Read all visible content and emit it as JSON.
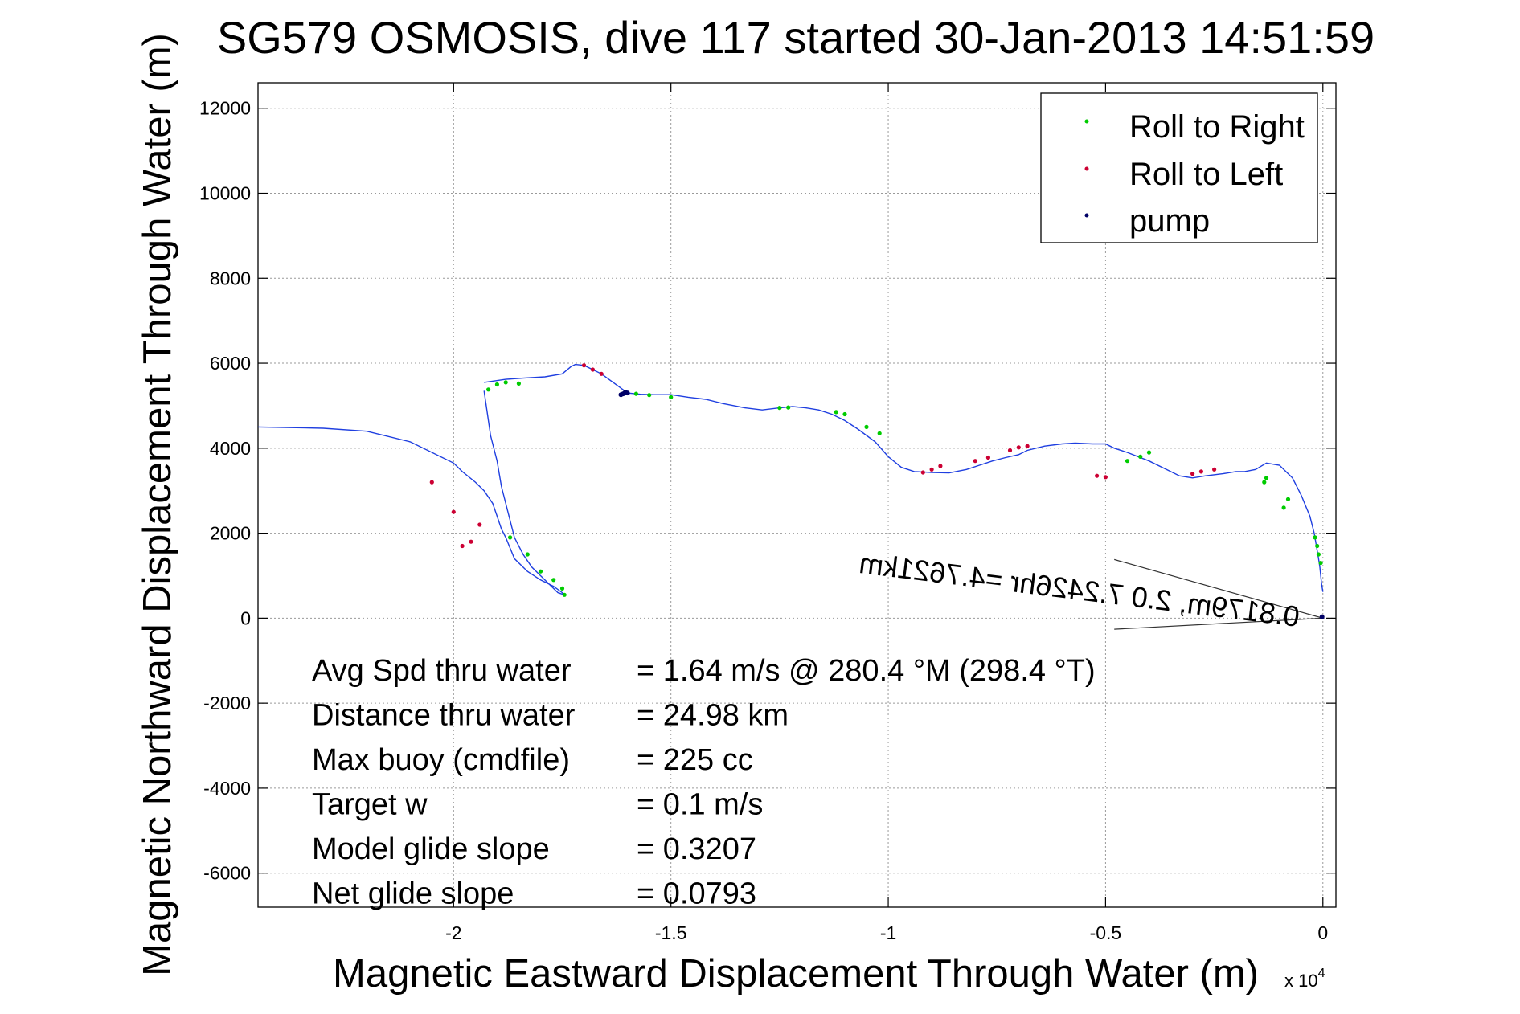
{
  "chart_data": {
    "type": "line",
    "title": "SG579 OSMOSIS, dive 117 started 30-Jan-2013 14:51:59",
    "xlabel": "Magnetic Eastward Displacement Through Water (m)",
    "ylabel": "Magnetic Northward Displacement Through Water (m)",
    "x_exponent_label": "x 10",
    "x_exponent_power": "4",
    "xlim": [
      -2.45,
      0.03
    ],
    "ylim": [
      -6800,
      12600
    ],
    "x_ticks": [
      -2,
      -1.5,
      -1,
      -0.5,
      0
    ],
    "x_tick_labels": [
      "-2",
      "-1.5",
      "-1",
      "-0.5",
      "0"
    ],
    "y_ticks": [
      -6000,
      -4000,
      -2000,
      0,
      2000,
      4000,
      6000,
      8000,
      10000,
      12000
    ],
    "y_tick_labels": [
      "-6000",
      "-4000",
      "-2000",
      "0",
      "2000",
      "4000",
      "6000",
      "8000",
      "10000",
      "12000"
    ],
    "grid": true,
    "legend_position": "top-right",
    "colors": {
      "track": "#1f3fe0",
      "roll_right": "#00cc00",
      "roll_left": "#cc0033",
      "pump": "#000066",
      "current": "#333333"
    },
    "series": [
      {
        "name": "",
        "style": "line",
        "x": [
          0.0,
          -0.003,
          -0.007,
          -0.01,
          -0.015,
          -0.02,
          -0.03,
          -0.05,
          -0.07,
          -0.1,
          -0.13,
          -0.155,
          -0.18,
          -0.2,
          -0.23,
          -0.27,
          -0.3,
          -0.33,
          -0.36,
          -0.4,
          -0.45,
          -0.48,
          -0.5,
          -0.53,
          -0.57,
          -0.6,
          -0.64,
          -0.68,
          -0.7,
          -0.73,
          -0.76,
          -0.79,
          -0.82,
          -0.86,
          -0.9,
          -0.94,
          -0.97,
          -1.0,
          -1.03,
          -1.07,
          -1.1,
          -1.13,
          -1.16,
          -1.19,
          -1.22,
          -1.25,
          -1.29,
          -1.33,
          -1.38,
          -1.42,
          -1.46,
          -1.5,
          -1.54,
          -1.57,
          -1.6,
          -1.62,
          -1.64,
          -1.66,
          -1.68,
          -1.7,
          -1.72,
          -1.73,
          -1.75,
          -1.79,
          -1.84,
          -1.88,
          -1.93
        ],
        "y": [
          620,
          800,
          1200,
          1400,
          1700,
          2000,
          2400,
          2900,
          3300,
          3600,
          3650,
          3500,
          3450,
          3450,
          3400,
          3350,
          3300,
          3350,
          3500,
          3700,
          3900,
          4000,
          4100,
          4100,
          4120,
          4100,
          4050,
          3950,
          3850,
          3780,
          3700,
          3600,
          3500,
          3420,
          3430,
          3450,
          3550,
          3800,
          4150,
          4450,
          4650,
          4800,
          4900,
          4950,
          4980,
          4950,
          4900,
          4950,
          5050,
          5150,
          5200,
          5260,
          5260,
          5270,
          5300,
          5450,
          5600,
          5750,
          5850,
          5950,
          5970,
          5920,
          5750,
          5680,
          5650,
          5620,
          5550
        ]
      },
      {
        "name": "",
        "style": "line",
        "x": [
          -1.93,
          -1.925,
          -1.915,
          -1.9,
          -1.89,
          -1.88,
          -1.87,
          -1.86,
          -1.84,
          -1.82,
          -1.8,
          -1.78,
          -1.76,
          -1.745,
          -1.75,
          -1.77,
          -1.8,
          -1.83,
          -1.86,
          -1.87,
          -1.88,
          -1.89,
          -1.9,
          -1.91,
          -1.93,
          -1.95,
          -1.98,
          -2.0,
          -2.1,
          -2.2,
          -2.3,
          -2.45
        ],
        "y": [
          5350,
          5000,
          4300,
          3700,
          3100,
          2700,
          2300,
          1900,
          1500,
          1200,
          1000,
          800,
          600,
          550,
          600,
          750,
          900,
          1100,
          1400,
          1650,
          1900,
          2100,
          2400,
          2700,
          3000,
          3200,
          3450,
          3650,
          4150,
          4400,
          4470,
          4500
        ]
      },
      {
        "name": "Roll to Right",
        "style": "points",
        "x": [
          -0.005,
          -0.01,
          -0.013,
          -0.018,
          -0.08,
          -0.09,
          -0.13,
          -0.135,
          -0.4,
          -0.42,
          -0.45,
          -1.02,
          -1.05,
          -1.1,
          -1.12,
          -1.23,
          -1.25,
          -1.5,
          -1.55,
          -1.58,
          -1.85,
          -1.88,
          -1.9,
          -1.92,
          -1.87,
          -1.83,
          -1.8,
          -1.77,
          -1.75,
          -1.745
        ],
        "y": [
          1300,
          1500,
          1700,
          1900,
          2800,
          2600,
          3300,
          3200,
          3900,
          3800,
          3700,
          4350,
          4500,
          4800,
          4850,
          4960,
          4950,
          5200,
          5250,
          5280,
          5520,
          5550,
          5500,
          5380,
          1900,
          1500,
          1100,
          900,
          700,
          550
        ]
      },
      {
        "name": "Roll to Left",
        "style": "points",
        "x": [
          -0.25,
          -0.28,
          -0.3,
          -0.5,
          -0.52,
          -0.68,
          -0.7,
          -0.72,
          -0.77,
          -0.8,
          -0.88,
          -0.9,
          -0.92,
          -1.66,
          -1.68,
          -1.7,
          -1.94,
          -1.96,
          -1.98,
          -2.0,
          -2.05
        ],
        "y": [
          3500,
          3450,
          3400,
          3320,
          3350,
          4050,
          4020,
          3950,
          3780,
          3700,
          3580,
          3500,
          3430,
          5750,
          5850,
          5950,
          2200,
          1800,
          1700,
          2500,
          3200
        ]
      },
      {
        "name": "pump",
        "style": "points",
        "x": [
          -1.6,
          -1.605,
          -1.61,
          -1.615,
          -0.002
        ],
        "y": [
          5300,
          5320,
          5280,
          5260,
          30
        ]
      }
    ],
    "current_vector_label": "0.8179m, 2.0 7.2426hr =4.7621km",
    "stats": [
      {
        "label": "Avg Spd thru water",
        "value": "=  1.64 m/s @ 280.4 °M (298.4 °T)"
      },
      {
        "label": "Distance thru water",
        "value": "= 24.98 km"
      },
      {
        "label": "Max buoy (cmdfile)",
        "value": "= 225 cc"
      },
      {
        "label": "Target w",
        "value": "= 0.1 m/s"
      },
      {
        "label": "Model glide slope",
        "value": "= 0.3207"
      },
      {
        "label": "Net glide slope",
        "value": "= 0.0793"
      }
    ]
  }
}
